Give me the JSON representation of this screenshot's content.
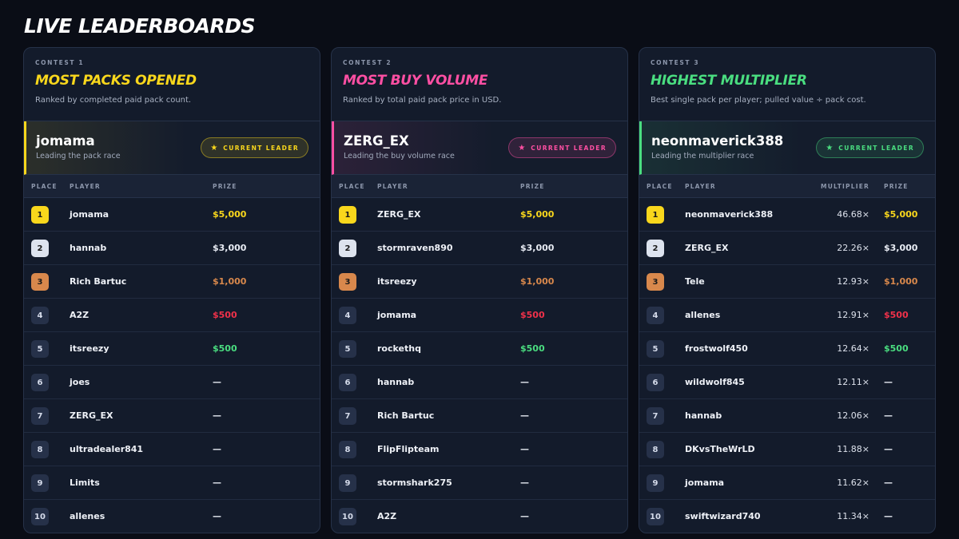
{
  "page": {
    "title": "LIVE LEADERBOARDS"
  },
  "colors": {
    "gold": "#f9d71c",
    "pink": "#ff4fa3",
    "green": "#4ade80",
    "silver": "#dde3ee",
    "bronze": "#d8884c",
    "red": "#f0314a",
    "white": "#e8ecf4",
    "dash": "#e8ecf4"
  },
  "panels": [
    {
      "tag": "CONTEST 1",
      "title": "MOST PACKS OPENED",
      "accent": "#f9d71c",
      "description": "Ranked by completed paid pack count.",
      "leader": {
        "name": "jomama",
        "subtitle": "Leading the pack race",
        "badge": "CURRENT LEADER",
        "badge_icon": "star-icon"
      },
      "columns": {
        "place": "PLACE",
        "player": "PLAYER",
        "prize": "PRIZE"
      },
      "rows": [
        {
          "place": "1",
          "player": "jomama",
          "prize": "$5,000"
        },
        {
          "place": "2",
          "player": "hannab",
          "prize": "$3,000"
        },
        {
          "place": "3",
          "player": "Rich Bartuc",
          "prize": "$1,000"
        },
        {
          "place": "4",
          "player": "A2Z",
          "prize": "$500"
        },
        {
          "place": "5",
          "player": "itsreezy",
          "prize": "$500"
        },
        {
          "place": "6",
          "player": "joes",
          "prize": "—"
        },
        {
          "place": "7",
          "player": "ZERG_EX",
          "prize": "—"
        },
        {
          "place": "8",
          "player": "ultradealer841",
          "prize": "—"
        },
        {
          "place": "9",
          "player": "Limits",
          "prize": "—"
        },
        {
          "place": "10",
          "player": "allenes",
          "prize": "—"
        }
      ]
    },
    {
      "tag": "CONTEST 2",
      "title": "MOST BUY VOLUME",
      "accent": "#ff4fa3",
      "description": "Ranked by total paid pack price in USD.",
      "leader": {
        "name": "ZERG_EX",
        "subtitle": "Leading the buy volume race",
        "badge": "CURRENT LEADER",
        "badge_icon": "star-icon"
      },
      "columns": {
        "place": "PLACE",
        "player": "PLAYER",
        "prize": "PRIZE"
      },
      "rows": [
        {
          "place": "1",
          "player": "ZERG_EX",
          "prize": "$5,000"
        },
        {
          "place": "2",
          "player": "stormraven890",
          "prize": "$3,000"
        },
        {
          "place": "3",
          "player": "itsreezy",
          "prize": "$1,000"
        },
        {
          "place": "4",
          "player": "jomama",
          "prize": "$500"
        },
        {
          "place": "5",
          "player": "rockethq",
          "prize": "$500"
        },
        {
          "place": "6",
          "player": "hannab",
          "prize": "—"
        },
        {
          "place": "7",
          "player": "Rich Bartuc",
          "prize": "—"
        },
        {
          "place": "8",
          "player": "FlipFlipteam",
          "prize": "—"
        },
        {
          "place": "9",
          "player": "stormshark275",
          "prize": "—"
        },
        {
          "place": "10",
          "player": "A2Z",
          "prize": "—"
        }
      ]
    },
    {
      "tag": "CONTEST 3",
      "title": "HIGHEST MULTIPLIER",
      "accent": "#4ade80",
      "description": "Best single pack per player; pulled value ÷ pack cost.",
      "leader": {
        "name": "neonmaverick388",
        "subtitle": "Leading the multiplier race",
        "badge": "CURRENT LEADER",
        "badge_icon": "star-icon"
      },
      "columns": {
        "place": "PLACE",
        "player": "PLAYER",
        "multiplier": "MULTIPLIER",
        "prize": "PRIZE"
      },
      "rows": [
        {
          "place": "1",
          "player": "neonmaverick388",
          "multiplier": "46.68×",
          "prize": "$5,000"
        },
        {
          "place": "2",
          "player": "ZERG_EX",
          "multiplier": "22.26×",
          "prize": "$3,000"
        },
        {
          "place": "3",
          "player": "Tele",
          "multiplier": "12.93×",
          "prize": "$1,000"
        },
        {
          "place": "4",
          "player": "allenes",
          "multiplier": "12.91×",
          "prize": "$500"
        },
        {
          "place": "5",
          "player": "frostwolf450",
          "multiplier": "12.64×",
          "prize": "$500"
        },
        {
          "place": "6",
          "player": "wildwolf845",
          "multiplier": "12.11×",
          "prize": "—"
        },
        {
          "place": "7",
          "player": "hannab",
          "multiplier": "12.06×",
          "prize": "—"
        },
        {
          "place": "8",
          "player": "DKvsTheWrLD",
          "multiplier": "11.88×",
          "prize": "—"
        },
        {
          "place": "9",
          "player": "jomama",
          "multiplier": "11.62×",
          "prize": "—"
        },
        {
          "place": "10",
          "player": "swiftwizard740",
          "multiplier": "11.34×",
          "prize": "—"
        }
      ]
    }
  ]
}
